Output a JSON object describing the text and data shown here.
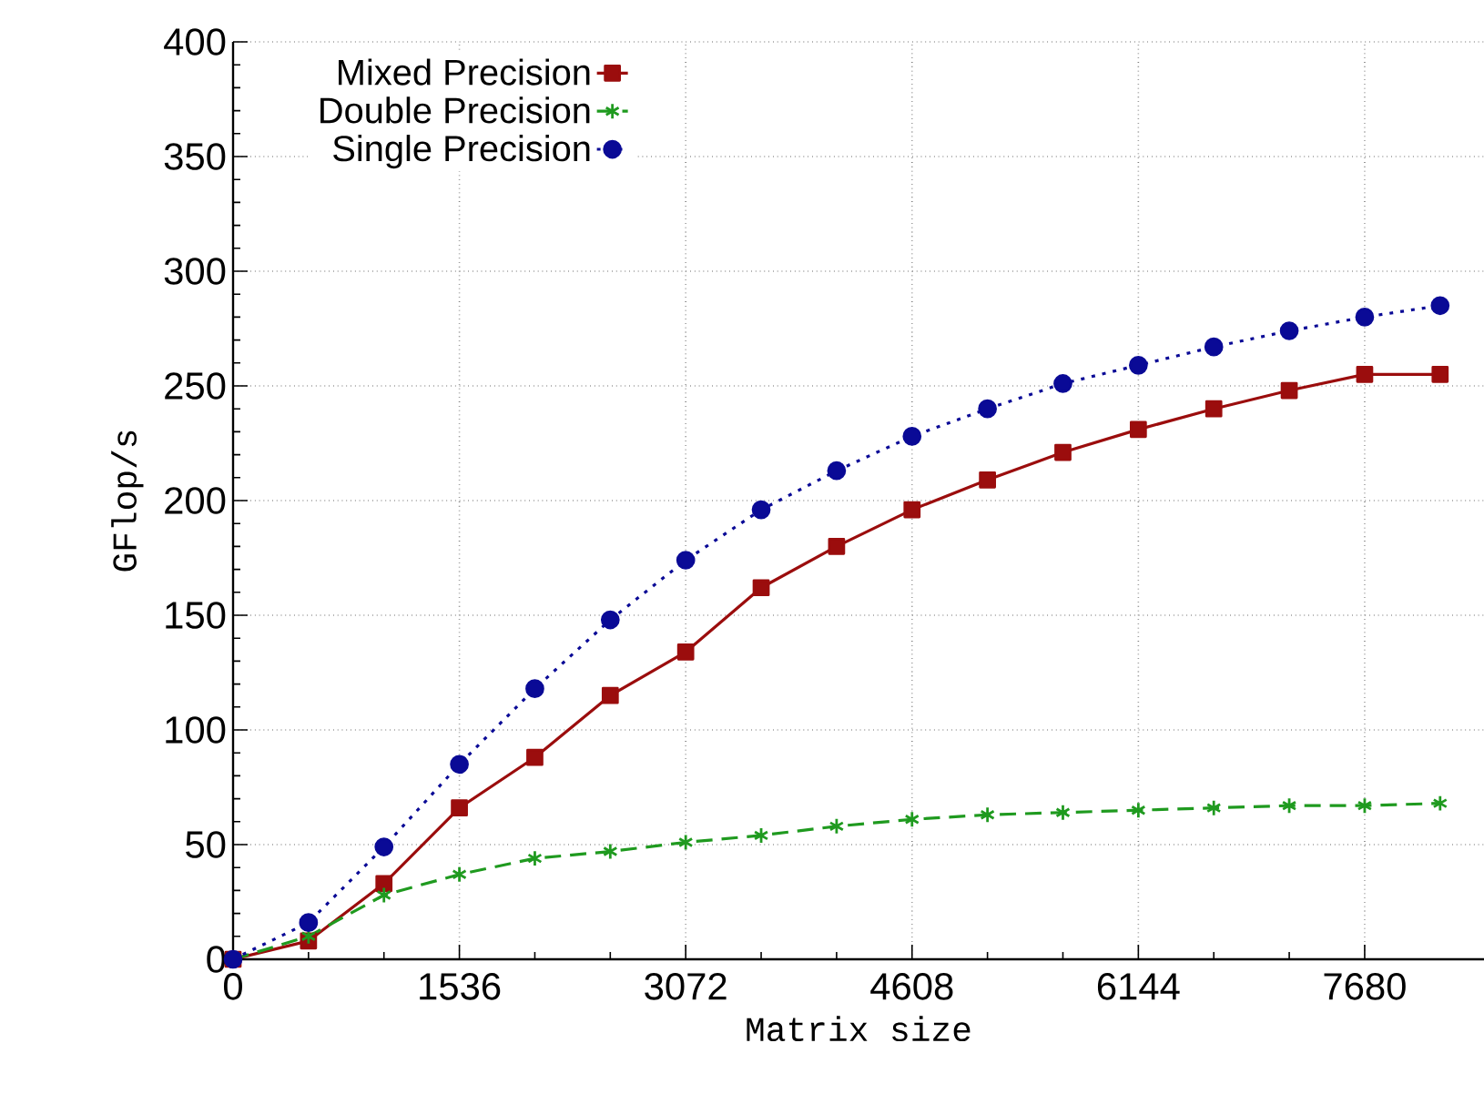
{
  "chart_data": {
    "type": "line",
    "xlabel": "Matrix size",
    "ylabel": "GFlop/s",
    "x": [
      0,
      512,
      1024,
      1536,
      2048,
      2560,
      3072,
      3584,
      4096,
      4608,
      5120,
      5632,
      6144,
      6656,
      7168,
      7680,
      8192
    ],
    "series": [
      {
        "name": "Mixed Precision",
        "color": "#9b0d0d",
        "marker": "square",
        "line_style": "solid",
        "values": [
          0,
          8,
          33,
          66,
          88,
          115,
          134,
          162,
          180,
          196,
          209,
          221,
          231,
          240,
          248,
          255,
          255
        ]
      },
      {
        "name": "Double Precision",
        "color": "#1f9a1f",
        "marker": "cross",
        "line_style": "dashed",
        "values": [
          0,
          10,
          28,
          37,
          44,
          47,
          51,
          54,
          58,
          61,
          63,
          64,
          65,
          66,
          67,
          67,
          68
        ]
      },
      {
        "name": "Single Precision",
        "color": "#0a0a96",
        "marker": "circle",
        "line_style": "dotted",
        "values": [
          0,
          16,
          49,
          85,
          118,
          148,
          174,
          196,
          213,
          228,
          240,
          251,
          259,
          267,
          274,
          280,
          285
        ]
      }
    ],
    "xlim": [
      0,
      8490
    ],
    "xticks": [
      0,
      1536,
      3072,
      4608,
      6144,
      7680
    ],
    "ylim": [
      0,
      400
    ],
    "yticks": [
      0,
      50,
      100,
      150,
      200,
      250,
      300,
      350,
      400
    ],
    "grid": true,
    "legend": "top left"
  }
}
